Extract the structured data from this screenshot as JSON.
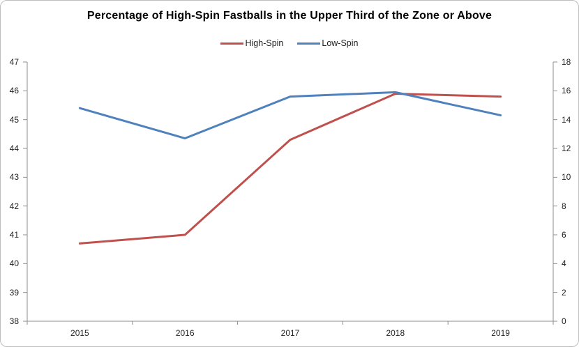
{
  "window": {
    "background": "#FFFFFF",
    "border_color": "#BDBDBD"
  },
  "chart_data": {
    "type": "line",
    "title": "Percentage of High-Spin Fastballs in the Upper Third of the Zone or Above",
    "categories": [
      "2015",
      "2016",
      "2017",
      "2018",
      "2019"
    ],
    "series": [
      {
        "name": "High-Spin",
        "color": "#C0504D",
        "axis": "left",
        "values": [
          40.7,
          41.0,
          44.3,
          45.9,
          45.8
        ]
      },
      {
        "name": "Low-Spin",
        "color": "#4F81BD",
        "axis": "left",
        "values": [
          45.4,
          44.35,
          45.8,
          45.95,
          45.15
        ]
      }
    ],
    "left_axis": {
      "min": 38,
      "max": 47,
      "step": 1,
      "tick_labels": [
        "47",
        "46",
        "45",
        "44",
        "43",
        "42",
        "41",
        "40",
        "39",
        "38"
      ]
    },
    "right_axis": {
      "min": 0,
      "max": 18,
      "step": 2,
      "tick_labels": [
        "18",
        "16",
        "14",
        "12",
        "10",
        "8",
        "6",
        "4",
        "2",
        "0"
      ]
    },
    "xlabel": "",
    "ylabel": "",
    "legend_position": "top-center",
    "grid": false,
    "axis_color": "#8C8C8C",
    "text_color": "#1F1F1F"
  }
}
